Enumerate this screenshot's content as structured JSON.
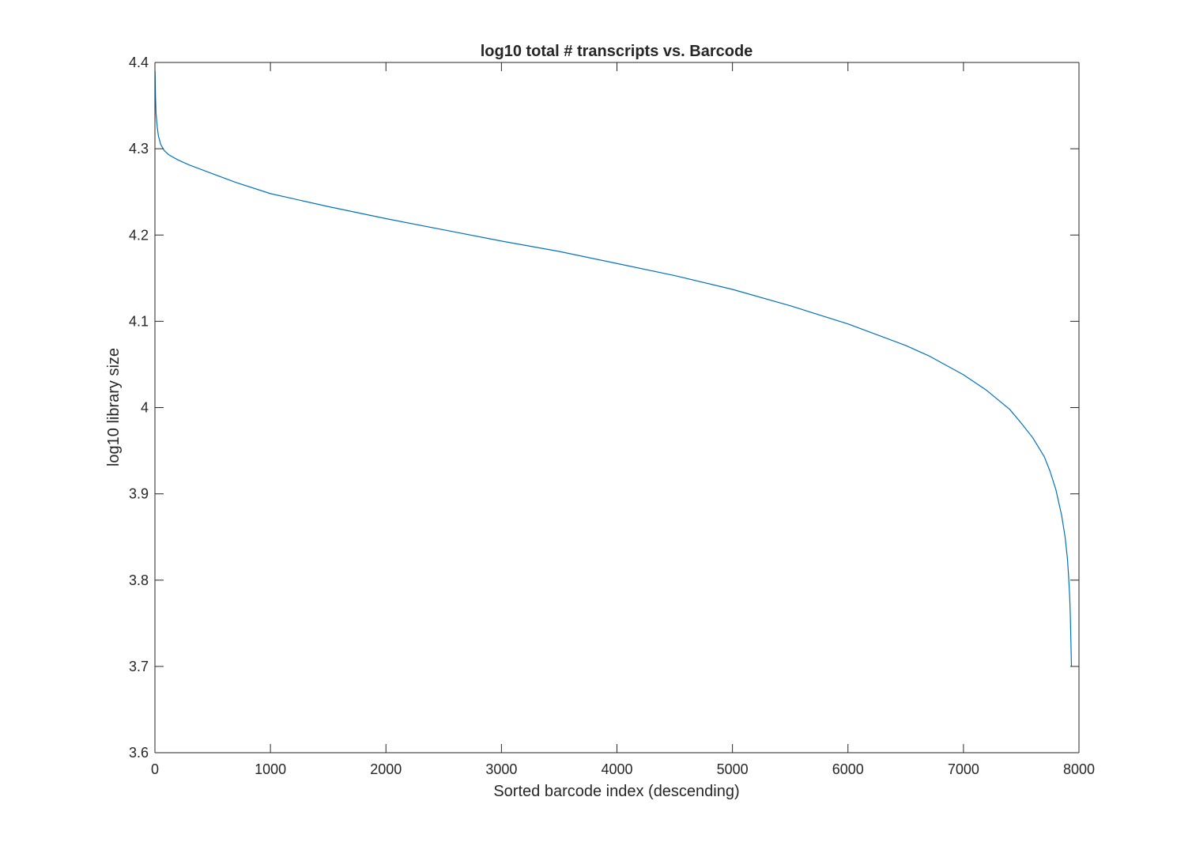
{
  "chart_data": {
    "type": "line",
    "title": "log10 total # transcripts vs. Barcode",
    "xlabel": "Sorted barcode index (descending)",
    "ylabel": "log10 library size",
    "xlim": [
      0,
      8000
    ],
    "ylim": [
      3.6,
      4.4
    ],
    "xticks": [
      0,
      1000,
      2000,
      3000,
      4000,
      5000,
      6000,
      7000,
      8000
    ],
    "xtick_labels": [
      "0",
      "1000",
      "2000",
      "3000",
      "4000",
      "5000",
      "6000",
      "7000",
      "8000"
    ],
    "yticks": [
      3.6,
      3.7,
      3.8,
      3.9,
      4.0,
      4.1,
      4.2,
      4.3,
      4.4
    ],
    "ytick_labels": [
      "3.6",
      "3.7",
      "3.8",
      "3.9",
      "4",
      "4.1",
      "4.2",
      "4.3",
      "4.4"
    ],
    "grid": false,
    "legend": "none",
    "colors": {
      "line": "#0072bd",
      "axes": "#262626",
      "background": "#ffffff"
    },
    "series": [
      {
        "x": [
          1,
          5,
          10,
          20,
          30,
          50,
          80,
          120,
          200,
          300,
          500,
          700,
          1000,
          1500,
          2000,
          2500,
          3000,
          3500,
          4000,
          4500,
          5000,
          5500,
          6000,
          6500,
          6700,
          7000,
          7200,
          7400,
          7500,
          7600,
          7700,
          7750,
          7800,
          7850,
          7880,
          7900,
          7910,
          7920,
          7925,
          7930,
          7935
        ],
        "y": [
          4.39,
          4.36,
          4.34,
          4.325,
          4.315,
          4.305,
          4.298,
          4.293,
          4.287,
          4.281,
          4.271,
          4.261,
          4.248,
          4.233,
          4.219,
          4.206,
          4.193,
          4.181,
          4.167,
          4.153,
          4.137,
          4.118,
          4.097,
          4.072,
          4.06,
          4.038,
          4.02,
          3.998,
          3.982,
          3.965,
          3.943,
          3.926,
          3.905,
          3.875,
          3.85,
          3.825,
          3.805,
          3.78,
          3.76,
          3.73,
          3.7
        ]
      }
    ]
  }
}
